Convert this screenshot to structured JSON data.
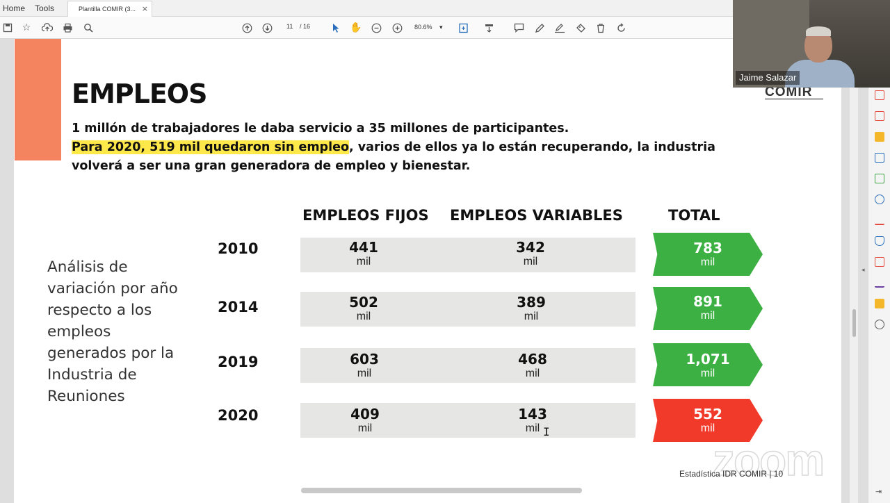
{
  "menubar": {
    "home": "Home",
    "tools": "Tools",
    "tab_title": "Plantilla COMIR (3...",
    "tab_close": "×"
  },
  "toolbar": {
    "page_current": "11",
    "page_total": "/ 16",
    "zoom": "80.6%",
    "icons": [
      "save-icon",
      "star-icon",
      "upload-icon",
      "print-icon",
      "search-icon",
      "up-arrow-icon",
      "down-arrow-icon",
      "cursor-icon",
      "hand-icon",
      "zoom-out-icon",
      "zoom-in-icon",
      "fit-icon",
      "scroll-icon",
      "comment-icon",
      "pen-icon",
      "sign-icon",
      "stamp-icon",
      "delete-icon",
      "rotate-icon"
    ]
  },
  "slide": {
    "title": "EMPLEOS",
    "line1": "1 millón de trabajadores le daba servicio a 35 millones de participantes.",
    "line2_highlight": "Para 2020, 519 mil quedaron sin empleo",
    "line2_rest": ", varios de ellos ya lo están recuperando, la industria",
    "line3": "volverá a ser una gran generadora de empleo y bienestar.",
    "col_fijos": "EMPLEOS FIJOS",
    "col_variables": "EMPLEOS VARIABLES",
    "col_total": "TOTAL",
    "analysis": "Análisis de variación por año respecto a los empleos generados por la Industria de Reuniones",
    "unit": "mil",
    "rows": [
      {
        "year": "2010",
        "fijos": "441",
        "variables": "342",
        "total": "783",
        "status_color": "#3cb043"
      },
      {
        "year": "2014",
        "fijos": "502",
        "variables": "389",
        "total": "891",
        "status_color": "#3cb043"
      },
      {
        "year": "2019",
        "fijos": "603",
        "variables": "468",
        "total": "1,071",
        "status_color": "#3cb043"
      },
      {
        "year": "2020",
        "fijos": "409",
        "variables": "143",
        "total": "552",
        "status_color": "#f23a2a"
      }
    ],
    "footer": "Estadística IDR COMIR | 10",
    "logo": "COMIR"
  },
  "webcam": {
    "participant": "Jaime Salazar"
  },
  "watermark": "zoom",
  "colors": {
    "accent_orange": "#f4845f",
    "highlight": "#ffe94a",
    "green": "#3cb043",
    "red": "#f23a2a"
  }
}
